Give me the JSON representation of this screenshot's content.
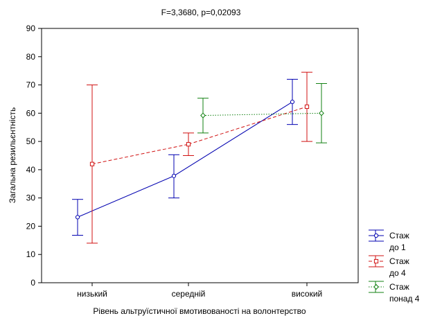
{
  "chart_data": {
    "type": "line",
    "title": "F=3,3680, p=0,02093",
    "xlabel": "Рівень альтруїстичної вмотивованості на волонтерство",
    "ylabel": "Загальна резильєнтність",
    "categories": [
      "низький",
      "середній",
      "високий"
    ],
    "ylim": [
      0,
      90
    ],
    "yticks": [
      0,
      10,
      20,
      30,
      40,
      50,
      60,
      70,
      80,
      90
    ],
    "grid": false,
    "legend_position": "right-bottom",
    "series": [
      {
        "name_lines": [
          "Стаж",
          "до 1"
        ],
        "color": "#0000b0",
        "line_style": "solid",
        "marker": "circle",
        "means": [
          23.2,
          37.8,
          64.0
        ],
        "lower": [
          16.8,
          30.0,
          56.0
        ],
        "upper": [
          29.5,
          45.3,
          72.0
        ]
      },
      {
        "name_lines": [
          "Стаж",
          "до 4"
        ],
        "color": "#d01010",
        "line_style": "dashed",
        "marker": "square",
        "means": [
          42.0,
          49.0,
          62.3
        ],
        "lower": [
          14.0,
          45.0,
          50.0
        ],
        "upper": [
          70.0,
          53.0,
          74.5
        ]
      },
      {
        "name_lines": [
          "Стаж",
          "понад 4"
        ],
        "color": "#108010",
        "line_style": "dotted",
        "marker": "diamond",
        "means": [
          null,
          59.2,
          60.0
        ],
        "lower": [
          null,
          53.0,
          49.5
        ],
        "upper": [
          null,
          65.3,
          70.5
        ]
      }
    ]
  }
}
